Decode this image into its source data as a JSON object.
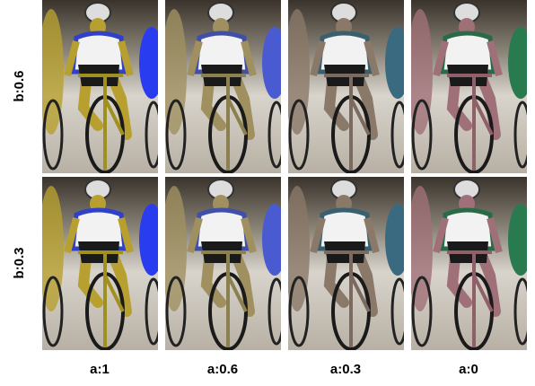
{
  "row_labels": [
    "b:0.6",
    "b:0.3"
  ],
  "column_labels": [
    "a:1",
    "a:0.6",
    "a:0.3",
    "a:0"
  ]
}
